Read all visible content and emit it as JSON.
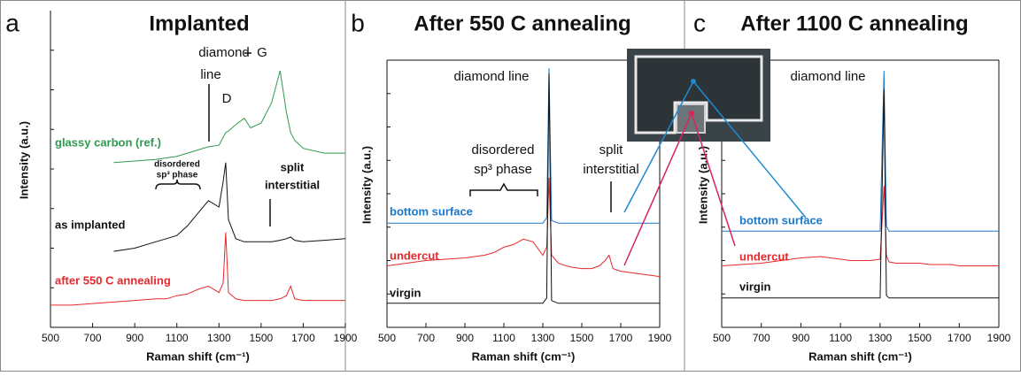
{
  "chart_data": [
    {
      "type": "line",
      "panel_label": "a",
      "title": "Implanted",
      "xlabel": "Raman shift (cm⁻¹)",
      "ylabel": "Intensity (a.u.)",
      "xlim": [
        500,
        1900
      ],
      "xticks": [
        500,
        700,
        900,
        1100,
        1300,
        1500,
        1700,
        1900
      ],
      "ylim": [
        0,
        100
      ],
      "x": [
        500,
        600,
        700,
        800,
        900,
        1000,
        1050,
        1100,
        1150,
        1200,
        1250,
        1300,
        1320,
        1332,
        1345,
        1380,
        1420,
        1450,
        1500,
        1550,
        1590,
        1620,
        1640,
        1660,
        1700,
        1800,
        1900
      ],
      "series": [
        {
          "name": "glassy carbon (ref.)",
          "color": "#2e9a4e",
          "values": [
            null,
            null,
            null,
            52,
            52.5,
            53,
            53.5,
            54,
            55,
            56,
            57,
            57.5,
            60,
            61.5,
            62,
            64,
            66,
            63,
            64.5,
            71,
            81,
            68,
            61.5,
            59,
            56.5,
            55,
            55
          ]
        },
        {
          "name": "as implanted",
          "color": "#111111",
          "values": [
            null,
            null,
            null,
            24,
            25,
            27,
            28,
            29,
            32,
            36,
            40,
            38,
            46,
            52,
            34,
            28,
            27,
            27,
            27,
            27,
            27.5,
            28,
            28.5,
            27.5,
            27,
            27.5,
            28
          ]
        },
        {
          "name": "after 550 C annealing",
          "color": "#e8282b",
          "values": [
            7,
            7,
            7.5,
            8,
            8.5,
            9,
            9,
            10,
            10.5,
            12,
            13,
            11,
            14,
            30,
            11,
            9,
            8.5,
            8.5,
            8.5,
            8.5,
            9,
            10,
            13,
            9,
            8.5,
            8.5,
            8.5
          ]
        }
      ],
      "annotations": [
        "diamond",
        "line",
        "D",
        "G",
        "disordered",
        "sp³ phase",
        "split",
        "interstitial"
      ]
    },
    {
      "type": "line",
      "panel_label": "b",
      "title": "After 550 C annealing",
      "xlabel": "Raman shift (cm⁻¹)",
      "ylabel": "Intensity (a.u.)",
      "xlim": [
        500,
        1900
      ],
      "xticks": [
        500,
        700,
        900,
        1100,
        1300,
        1500,
        1700,
        1900
      ],
      "ylim": [
        0,
        100
      ],
      "x": [
        500,
        600,
        700,
        800,
        900,
        1000,
        1050,
        1100,
        1150,
        1200,
        1250,
        1300,
        1320,
        1332,
        1345,
        1380,
        1420,
        1450,
        1500,
        1550,
        1590,
        1620,
        1640,
        1660,
        1700,
        1800,
        1900
      ],
      "series": [
        {
          "name": "bottom surface",
          "color": "#1b78c8",
          "values": [
            39,
            39,
            39,
            39,
            39,
            39,
            39,
            39,
            39,
            39,
            39,
            39,
            41,
            97,
            40,
            39,
            39,
            39,
            39,
            39,
            39,
            39,
            39,
            39,
            39,
            39,
            39
          ]
        },
        {
          "name": "undercut",
          "color": "#e8282b",
          "values": [
            23,
            24,
            25,
            25.5,
            26,
            27,
            28,
            30,
            31,
            33,
            32,
            27,
            30,
            56,
            27,
            24,
            23,
            22.5,
            22,
            22,
            23,
            25,
            27,
            22,
            21,
            20,
            19
          ]
        },
        {
          "name": "virgin",
          "color": "#111111",
          "values": [
            9,
            9,
            9,
            9,
            9,
            9,
            9,
            9,
            9,
            9,
            9,
            9,
            11,
            95,
            10,
            9,
            9,
            9,
            9,
            9,
            9,
            9,
            9,
            9,
            9,
            9,
            9
          ]
        }
      ],
      "annotations": [
        "diamond line",
        "disordered",
        "sp³ phase",
        "split",
        "interstitial"
      ]
    },
    {
      "type": "line",
      "panel_label": "c",
      "title": "After 1100 C annealing",
      "xlabel": "Raman shift (cm⁻¹)",
      "ylabel": "Intensity (a.u.)",
      "xlim": [
        500,
        1900
      ],
      "xticks": [
        500,
        700,
        900,
        1100,
        1300,
        1500,
        1700,
        1900
      ],
      "ylim": [
        0,
        100
      ],
      "x": [
        500,
        600,
        700,
        800,
        900,
        1000,
        1050,
        1100,
        1150,
        1200,
        1250,
        1300,
        1320,
        1332,
        1345,
        1380,
        1420,
        1450,
        1500,
        1550,
        1590,
        1620,
        1640,
        1660,
        1700,
        1800,
        1900
      ],
      "series": [
        {
          "name": "bottom surface",
          "color": "#1b78c8",
          "values": [
            36,
            36,
            36,
            36,
            36,
            36,
            36,
            36,
            36,
            36,
            36,
            36,
            96,
            38,
            36,
            36,
            36,
            36,
            36,
            36,
            36,
            36,
            36,
            36,
            36,
            36,
            36
          ]
        },
        {
          "name": "undercut",
          "color": "#e8282b",
          "values": [
            23,
            23.5,
            24,
            25,
            26,
            26.5,
            26,
            25.5,
            25,
            25,
            25,
            25.5,
            53,
            27,
            24.5,
            24,
            24,
            24,
            24,
            23.5,
            23.5,
            23.5,
            23.5,
            23.5,
            23,
            23,
            23
          ]
        },
        {
          "name": "virgin",
          "color": "#111111",
          "values": [
            11,
            11,
            11,
            11,
            11,
            11,
            11,
            11,
            11,
            11,
            11,
            11,
            89,
            12,
            11,
            11,
            11,
            11,
            11,
            11,
            11,
            11,
            11,
            11,
            11,
            11,
            11
          ]
        }
      ],
      "annotations": [
        "diamond line"
      ]
    }
  ]
}
